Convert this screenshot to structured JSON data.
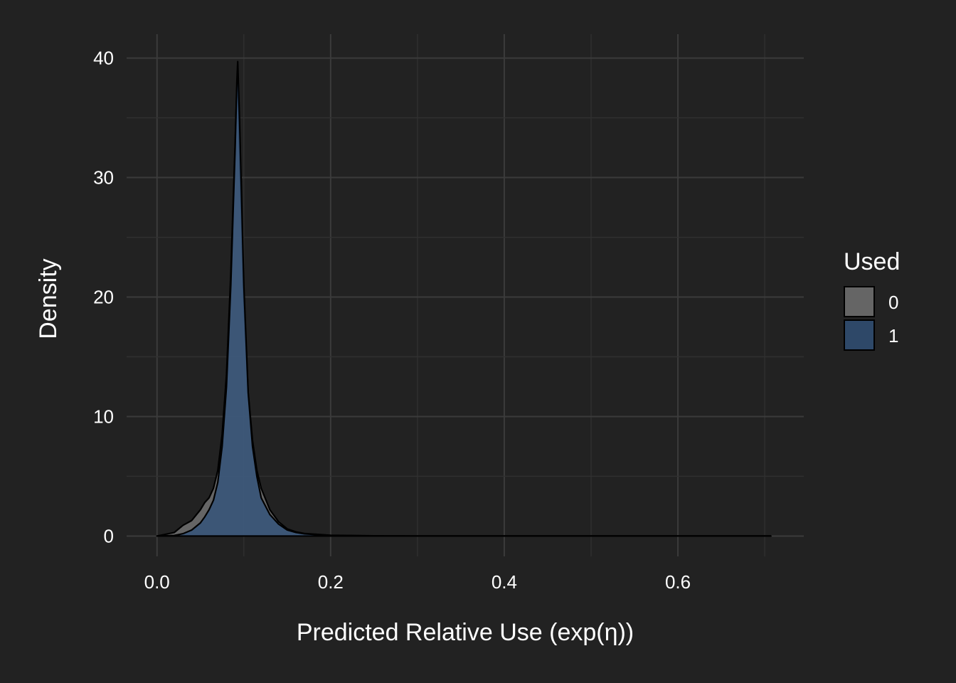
{
  "chart_data": {
    "type": "area",
    "title": "",
    "xlabel": "Predicted Relative Use (exp(η))",
    "ylabel": "Density",
    "xlim": [
      -0.035,
      0.745
    ],
    "ylim": [
      -1.7,
      42
    ],
    "x_ticks": [
      "0.0",
      "0.2",
      "0.4",
      "0.6"
    ],
    "x_tick_values": [
      0.0,
      0.2,
      0.4,
      0.6
    ],
    "y_ticks": [
      "0",
      "10",
      "20",
      "30",
      "40"
    ],
    "y_tick_values": [
      0,
      10,
      20,
      30,
      40
    ],
    "grid": true,
    "legend": {
      "title": "Used",
      "position": "right"
    },
    "series": [
      {
        "name": "0",
        "color": "#777777",
        "points": [
          [
            0.0,
            0.0
          ],
          [
            0.02,
            0.3
          ],
          [
            0.03,
            0.9
          ],
          [
            0.04,
            1.3
          ],
          [
            0.05,
            2.2
          ],
          [
            0.055,
            2.8
          ],
          [
            0.06,
            3.2
          ],
          [
            0.065,
            4.0
          ],
          [
            0.07,
            5.5
          ],
          [
            0.075,
            8.5
          ],
          [
            0.08,
            13.5
          ],
          [
            0.085,
            22.0
          ],
          [
            0.09,
            33.0
          ],
          [
            0.092,
            37.5
          ],
          [
            0.093,
            38.0
          ],
          [
            0.095,
            33.0
          ],
          [
            0.1,
            20.0
          ],
          [
            0.105,
            12.0
          ],
          [
            0.11,
            8.0
          ],
          [
            0.115,
            5.5
          ],
          [
            0.12,
            4.0
          ],
          [
            0.13,
            2.2
          ],
          [
            0.14,
            1.2
          ],
          [
            0.15,
            0.6
          ],
          [
            0.16,
            0.35
          ],
          [
            0.17,
            0.22
          ],
          [
            0.2,
            0.06
          ],
          [
            0.25,
            0.02
          ],
          [
            0.3,
            0.01
          ],
          [
            0.5,
            0.0
          ],
          [
            0.707,
            0.0
          ]
        ]
      },
      {
        "name": "1",
        "color": "#32537a",
        "points": [
          [
            0.0,
            0.0
          ],
          [
            0.02,
            0.05
          ],
          [
            0.03,
            0.2
          ],
          [
            0.04,
            0.5
          ],
          [
            0.05,
            1.1
          ],
          [
            0.055,
            1.6
          ],
          [
            0.06,
            2.2
          ],
          [
            0.065,
            3.0
          ],
          [
            0.07,
            4.5
          ],
          [
            0.075,
            7.5
          ],
          [
            0.08,
            12.5
          ],
          [
            0.085,
            21.0
          ],
          [
            0.09,
            32.5
          ],
          [
            0.092,
            38.0
          ],
          [
            0.093,
            39.7
          ],
          [
            0.095,
            35.0
          ],
          [
            0.1,
            21.0
          ],
          [
            0.105,
            12.0
          ],
          [
            0.11,
            7.5
          ],
          [
            0.115,
            5.0
          ],
          [
            0.12,
            3.2
          ],
          [
            0.13,
            1.8
          ],
          [
            0.14,
            1.0
          ],
          [
            0.15,
            0.5
          ],
          [
            0.16,
            0.3
          ],
          [
            0.17,
            0.18
          ],
          [
            0.2,
            0.05
          ],
          [
            0.25,
            0.01
          ],
          [
            0.3,
            0.0
          ],
          [
            0.5,
            0.0
          ],
          [
            0.707,
            0.0
          ]
        ]
      }
    ]
  }
}
